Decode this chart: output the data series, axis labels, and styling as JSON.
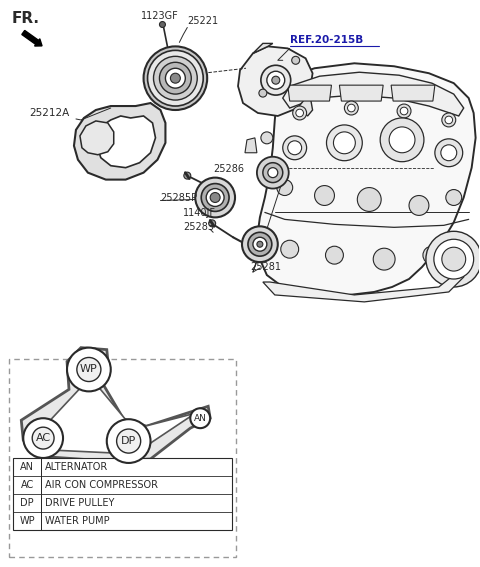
{
  "bg_color": "#ffffff",
  "line_color": "#2a2a2a",
  "fig_width": 4.8,
  "fig_height": 5.67,
  "dpi": 100,
  "labels": {
    "FR": "FR.",
    "ref": "REF.20-215B",
    "p1123GF": "1123GF",
    "p25221": "25221",
    "p25212A": "25212A",
    "p25286": "25286",
    "p25285P": "25285P",
    "p1140JF": "1140JF",
    "p25283": "25283",
    "p25281": "25281"
  },
  "legend_rows": [
    [
      "AN",
      "ALTERNATOR"
    ],
    [
      "AC",
      "AIR CON COMPRESSOR"
    ],
    [
      "DP",
      "DRIVE PULLEY"
    ],
    [
      "WP",
      "WATER PUMP"
    ]
  ]
}
